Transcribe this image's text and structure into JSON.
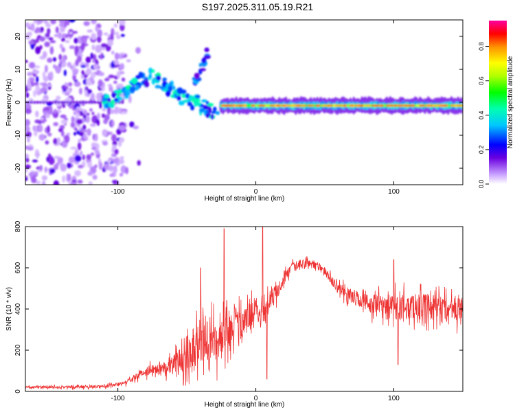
{
  "title": "S197.2025.311.05.19.R21",
  "chart_data": [
    {
      "type": "heatmap",
      "xlabel": "Height of straight line (km)",
      "ylabel": "Frequency (Hz)",
      "xlim": [
        -167,
        150
      ],
      "ylim": [
        -25,
        25
      ],
      "xticks": [
        -100,
        0,
        100
      ],
      "yticks": [
        -20,
        -10,
        0,
        10,
        20
      ],
      "colorbar": {
        "label": "Normalized spectral amplitude",
        "range": [
          0.0,
          0.95
        ],
        "ticks": [
          0.0,
          0.2,
          0.4,
          0.6,
          0.8
        ]
      },
      "features": [
        {
          "name": "noise-region",
          "x_range": [
            -167,
            -95
          ],
          "freq_range": [
            -25,
            25
          ],
          "amplitude": 0.15
        },
        {
          "name": "rising-track",
          "points": [
            [
              -110,
              0
            ],
            [
              -95,
              3
            ],
            [
              -85,
              6
            ],
            [
              -75,
              8
            ],
            [
              -65,
              5
            ],
            [
              -55,
              2
            ],
            [
              -45,
              0
            ],
            [
              -35,
              -2
            ],
            [
              -28,
              -4
            ]
          ],
          "amplitude": 0.35
        },
        {
          "name": "upper-streak",
          "points": [
            [
              -45,
              7
            ],
            [
              -40,
              10
            ],
            [
              -34,
              15
            ]
          ],
          "amplitude": 0.25
        },
        {
          "name": "main-band",
          "x_range": [
            -25,
            150
          ],
          "freq": -1,
          "amplitude": 0.9
        }
      ]
    },
    {
      "type": "line",
      "xlabel": "Height of straight line (km)",
      "ylabel": "SNR (10 * v/v)",
      "xlim": [
        -167,
        150
      ],
      "ylim": [
        0,
        800
      ],
      "xticks": [
        -100,
        0,
        100
      ],
      "yticks": [
        0,
        200,
        400,
        600,
        800
      ],
      "series": [
        {
          "name": "SNR",
          "color": "#ee3333",
          "x": [
            -167,
            -140,
            -120,
            -110,
            -95,
            -85,
            -75,
            -65,
            -55,
            -45,
            -40,
            -35,
            -30,
            -25,
            -20,
            -15,
            -10,
            -5,
            0,
            5,
            10,
            15,
            20,
            25,
            30,
            35,
            40,
            45,
            50,
            55,
            60,
            70,
            80,
            90,
            100,
            110,
            120,
            130,
            140,
            150
          ],
          "values": [
            20,
            20,
            22,
            25,
            40,
            80,
            110,
            120,
            150,
            220,
            260,
            240,
            230,
            250,
            300,
            350,
            310,
            370,
            400,
            390,
            430,
            480,
            540,
            590,
            610,
            620,
            625,
            610,
            580,
            540,
            500,
            460,
            430,
            420,
            410,
            410,
            410,
            400,
            390,
            390
          ]
        }
      ],
      "spikes": [
        [
          -40,
          600
        ],
        [
          -23,
          790
        ],
        [
          5,
          820
        ],
        [
          8,
          60
        ],
        [
          100,
          640
        ],
        [
          103,
          130
        ]
      ],
      "noise_amplitude": [
        [
          -167,
          10
        ],
        [
          -100,
          15
        ],
        [
          -80,
          40
        ],
        [
          -60,
          80
        ],
        [
          -45,
          220
        ],
        [
          -30,
          200
        ],
        [
          -15,
          160
        ],
        [
          0,
          120
        ],
        [
          20,
          60
        ],
        [
          40,
          40
        ],
        [
          60,
          50
        ],
        [
          80,
          90
        ],
        [
          100,
          120
        ],
        [
          120,
          130
        ],
        [
          150,
          140
        ]
      ]
    }
  ]
}
